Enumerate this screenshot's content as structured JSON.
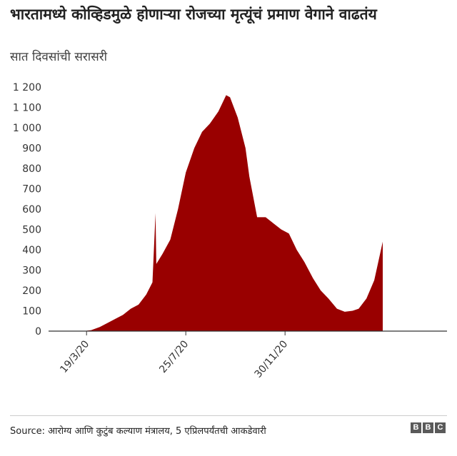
{
  "header": {
    "title": "भारतामध्ये कोव्हिडमुळे होणाऱ्या रोजच्या मृत्यूंचं प्रमाण वेगाने वाढतंय",
    "subtitle": "सात दिवसांची सरासरी"
  },
  "footer": {
    "source": "Source: आरोग्य आणि कुटुंब कल्याण मंत्रालय, 5 एप्रिलपर्यंतची आकडेवारी",
    "logo_letters": [
      "B",
      "B",
      "C"
    ]
  },
  "colors": {
    "area": "#990000",
    "axis": "#333333",
    "grid": "#dddddd"
  },
  "chart_data": {
    "type": "area",
    "ylim": [
      0,
      1200
    ],
    "y_ticks": [
      0,
      100,
      200,
      300,
      400,
      500,
      600,
      700,
      800,
      900,
      1000,
      1100,
      1200
    ],
    "y_tick_labels": [
      "0",
      "100",
      "200",
      "300",
      "400",
      "500",
      "600",
      "700",
      "800",
      "900",
      "1 000",
      "1 100",
      "1 200"
    ],
    "x_ticks": [
      "2020-03-19",
      "2020-07-25",
      "2020-11-30"
    ],
    "x_tick_labels": [
      "19/3/20",
      "25/7/20",
      "30/11/20"
    ],
    "xlim": [
      "2020-01-30",
      "2021-04-05"
    ],
    "series": [
      {
        "x": [
          "2020-03-15",
          "2020-03-25",
          "2020-04-05",
          "2020-04-15",
          "2020-04-25",
          "2020-05-05",
          "2020-05-15",
          "2020-05-25",
          "2020-06-04",
          "2020-06-12",
          "2020-06-16",
          "2020-06-17",
          "2020-06-25",
          "2020-07-05",
          "2020-07-15",
          "2020-07-25",
          "2020-08-05",
          "2020-08-15",
          "2020-08-25",
          "2020-09-05",
          "2020-09-15",
          "2020-09-20",
          "2020-09-30",
          "2020-10-10",
          "2020-10-15",
          "2020-10-25",
          "2020-11-05",
          "2020-11-15",
          "2020-11-25",
          "2020-12-05",
          "2020-12-15",
          "2020-12-25",
          "2021-01-05",
          "2021-01-15",
          "2021-01-25",
          "2021-02-05",
          "2021-02-15",
          "2021-02-25",
          "2021-03-05",
          "2021-03-15",
          "2021-03-25",
          "2021-04-05"
        ],
        "y": [
          0,
          5,
          20,
          40,
          60,
          80,
          110,
          130,
          180,
          240,
          580,
          330,
          380,
          450,
          600,
          780,
          900,
          980,
          1020,
          1080,
          1160,
          1150,
          1050,
          900,
          760,
          560,
          560,
          530,
          500,
          480,
          400,
          340,
          260,
          200,
          160,
          110,
          95,
          100,
          110,
          160,
          250,
          440
        ]
      }
    ]
  }
}
